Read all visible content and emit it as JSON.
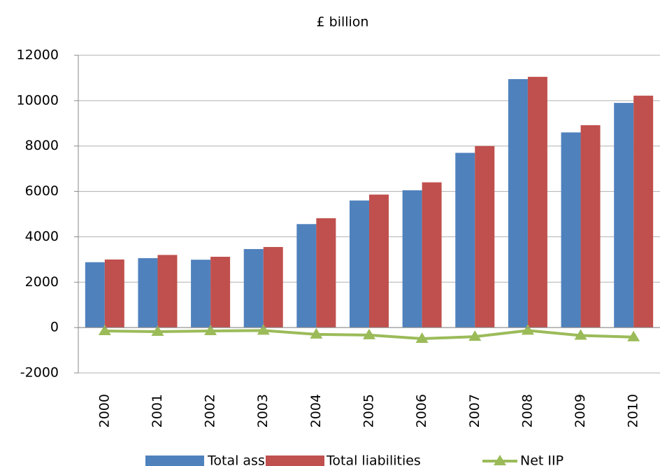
{
  "chart_data": {
    "type": "bar",
    "title": "£ billion",
    "categories": [
      "2000",
      "2001",
      "2002",
      "2003",
      "2004",
      "2005",
      "2006",
      "2007",
      "2008",
      "2009",
      "2010"
    ],
    "series": [
      {
        "name": "Total assets",
        "color": "#4f81bd",
        "values": [
          2880,
          3060,
          2990,
          3460,
          4560,
          5600,
          6050,
          7700,
          10950,
          8600,
          9900
        ]
      },
      {
        "name": "Total liabilities",
        "color": "#c0504d",
        "values": [
          3000,
          3200,
          3120,
          3550,
          4820,
          5860,
          6400,
          8000,
          11050,
          8920,
          10220
        ]
      },
      {
        "name": "Net IIP",
        "color": "#9bbb59",
        "type": "line",
        "values": [
          -150,
          -180,
          -150,
          -130,
          -300,
          -330,
          -490,
          -400,
          -130,
          -350,
          -420
        ]
      }
    ],
    "ylim": [
      -2000,
      12000
    ],
    "yticks": [
      -2000,
      0,
      2000,
      4000,
      6000,
      8000,
      10000,
      12000
    ],
    "grid": true
  }
}
